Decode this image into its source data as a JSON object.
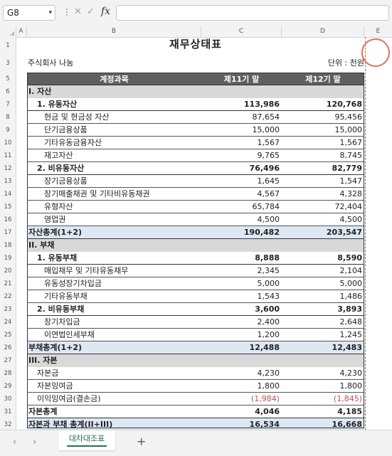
{
  "formula_bar": {
    "cell_ref": "G8",
    "fx_label": "fx",
    "formula": ""
  },
  "columns": [
    "A",
    "B",
    "C",
    "D",
    "E"
  ],
  "rows": [
    "1",
    "3",
    "5",
    "6",
    "7",
    "8",
    "9",
    "10",
    "11",
    "12",
    "13",
    "14",
    "15",
    "16",
    "17",
    "18",
    "19",
    "20",
    "21",
    "22",
    "23",
    "24",
    "25",
    "26",
    "27",
    "28",
    "29",
    "30",
    "31",
    "32"
  ],
  "sheet": {
    "title": "재무상태표",
    "company": "주식회사 나눔",
    "unit": "단위 : 천원",
    "header": {
      "account": "계정과목",
      "col1": "제11기 말",
      "col2": "제12기 말"
    },
    "lines": [
      {
        "type": "sec",
        "ind": 0,
        "label": "I. 자산",
        "v1": "",
        "v2": ""
      },
      {
        "type": "sub",
        "ind": 1,
        "label": "1. 유동자산",
        "v1": "113,986",
        "v2": "120,768"
      },
      {
        "type": "item",
        "ind": 2,
        "label": "현금 및 현금성 자산",
        "v1": "87,654",
        "v2": "95,456"
      },
      {
        "type": "item",
        "ind": 2,
        "label": "단기금융상품",
        "v1": "15,000",
        "v2": "15,000"
      },
      {
        "type": "item",
        "ind": 2,
        "label": "기타유동금융자산",
        "v1": "1,567",
        "v2": "1,567"
      },
      {
        "type": "item",
        "ind": 2,
        "label": "재고자산",
        "v1": "9,765",
        "v2": "8,745"
      },
      {
        "type": "sub",
        "ind": 1,
        "label": "2. 비유동자산",
        "v1": "76,496",
        "v2": "82,779"
      },
      {
        "type": "item",
        "ind": 2,
        "label": "장기금융상품",
        "v1": "1,645",
        "v2": "1,547"
      },
      {
        "type": "item",
        "ind": 2,
        "label": "장기매출채권 및 기타비유동채권",
        "v1": "4,567",
        "v2": "4,328"
      },
      {
        "type": "item",
        "ind": 2,
        "label": "유형자산",
        "v1": "65,784",
        "v2": "72,404"
      },
      {
        "type": "item",
        "ind": 2,
        "label": "영업권",
        "v1": "4,500",
        "v2": "4,500"
      },
      {
        "type": "total",
        "ind": 0,
        "label": "자산총계(1+2)",
        "v1": "190,482",
        "v2": "203,547"
      },
      {
        "type": "sec",
        "ind": 0,
        "label": "II. 부채",
        "v1": "",
        "v2": ""
      },
      {
        "type": "sub",
        "ind": 1,
        "label": "1. 유동부채",
        "v1": "8,888",
        "v2": "8,590"
      },
      {
        "type": "item",
        "ind": 2,
        "label": "매입채무 및 기타유동채무",
        "v1": "2,345",
        "v2": "2,104"
      },
      {
        "type": "item",
        "ind": 2,
        "label": "유동성장기차입금",
        "v1": "5,000",
        "v2": "5,000"
      },
      {
        "type": "item",
        "ind": 2,
        "label": "기타유동부채",
        "v1": "1,543",
        "v2": "1,486"
      },
      {
        "type": "sub",
        "ind": 1,
        "label": "2. 비유동부채",
        "v1": "3,600",
        "v2": "3,893"
      },
      {
        "type": "item",
        "ind": 2,
        "label": "장기차입금",
        "v1": "2,400",
        "v2": "2,648"
      },
      {
        "type": "item",
        "ind": 2,
        "label": "이연법인세부채",
        "v1": "1,200",
        "v2": "1,245"
      },
      {
        "type": "total",
        "ind": 0,
        "label": "부채총계(1+2)",
        "v1": "12,488",
        "v2": "12,483"
      },
      {
        "type": "sec",
        "ind": 0,
        "label": "III. 자본",
        "v1": "",
        "v2": ""
      },
      {
        "type": "item",
        "ind": 1,
        "label": "자본금",
        "v1": "4,230",
        "v2": "4,230"
      },
      {
        "type": "item",
        "ind": 1,
        "label": "자본잉여금",
        "v1": "1,800",
        "v2": "1,800"
      },
      {
        "type": "itemneg",
        "ind": 1,
        "label": "이익잉여금(결손금)",
        "v1": "(1,984)",
        "v2": "(1,845)"
      },
      {
        "type": "sub",
        "ind": 0,
        "label": "자본총계",
        "v1": "4,046",
        "v2": "4,185"
      },
      {
        "type": "total",
        "ind": 0,
        "label": "자본과 부채 총계(II+III)",
        "v1": "16,534",
        "v2": "16,668"
      }
    ]
  },
  "tabs": {
    "active": "대차대조표",
    "add_label": "+"
  },
  "colors": {
    "negative": "#c0504d",
    "total_bg": "#dde8f3",
    "header_bg": "#5f5f5f",
    "section_bg": "#d9d9d9",
    "tab_accent": "#217346"
  }
}
